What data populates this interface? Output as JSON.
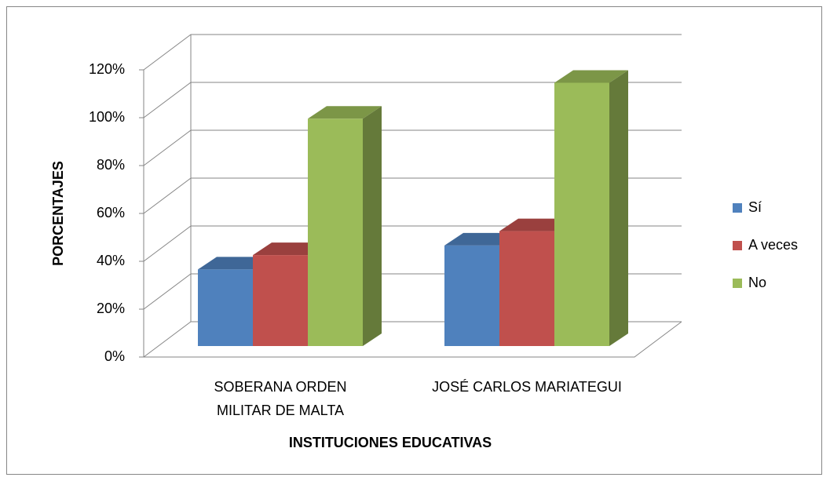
{
  "chart_data": {
    "type": "bar3d",
    "categories": [
      "SOBERANA ORDEN MILITAR DE MALTA",
      "JOSÉ CARLOS MARIATEGUI"
    ],
    "series": [
      {
        "name": "Sí",
        "color": "#4f81bd",
        "values": [
          32,
          42
        ]
      },
      {
        "name": "A veces",
        "color": "#c0504d",
        "values": [
          38,
          48
        ]
      },
      {
        "name": "No",
        "color": "#9bbb59",
        "values": [
          95,
          110
        ]
      }
    ],
    "ylim": [
      0,
      120
    ],
    "yticks": [
      {
        "value": 0,
        "label": "0%"
      },
      {
        "value": 20,
        "label": "20%"
      },
      {
        "value": 40,
        "label": "40%"
      },
      {
        "value": 60,
        "label": "60%"
      },
      {
        "value": 80,
        "label": "80%"
      },
      {
        "value": 100,
        "label": "100%"
      },
      {
        "value": 120,
        "label": "120%"
      }
    ],
    "ylabel": "PORCENTAJES",
    "xlabel": "INSTITUCIONES EDUCATIVAS",
    "grid": true,
    "legend": "right"
  }
}
